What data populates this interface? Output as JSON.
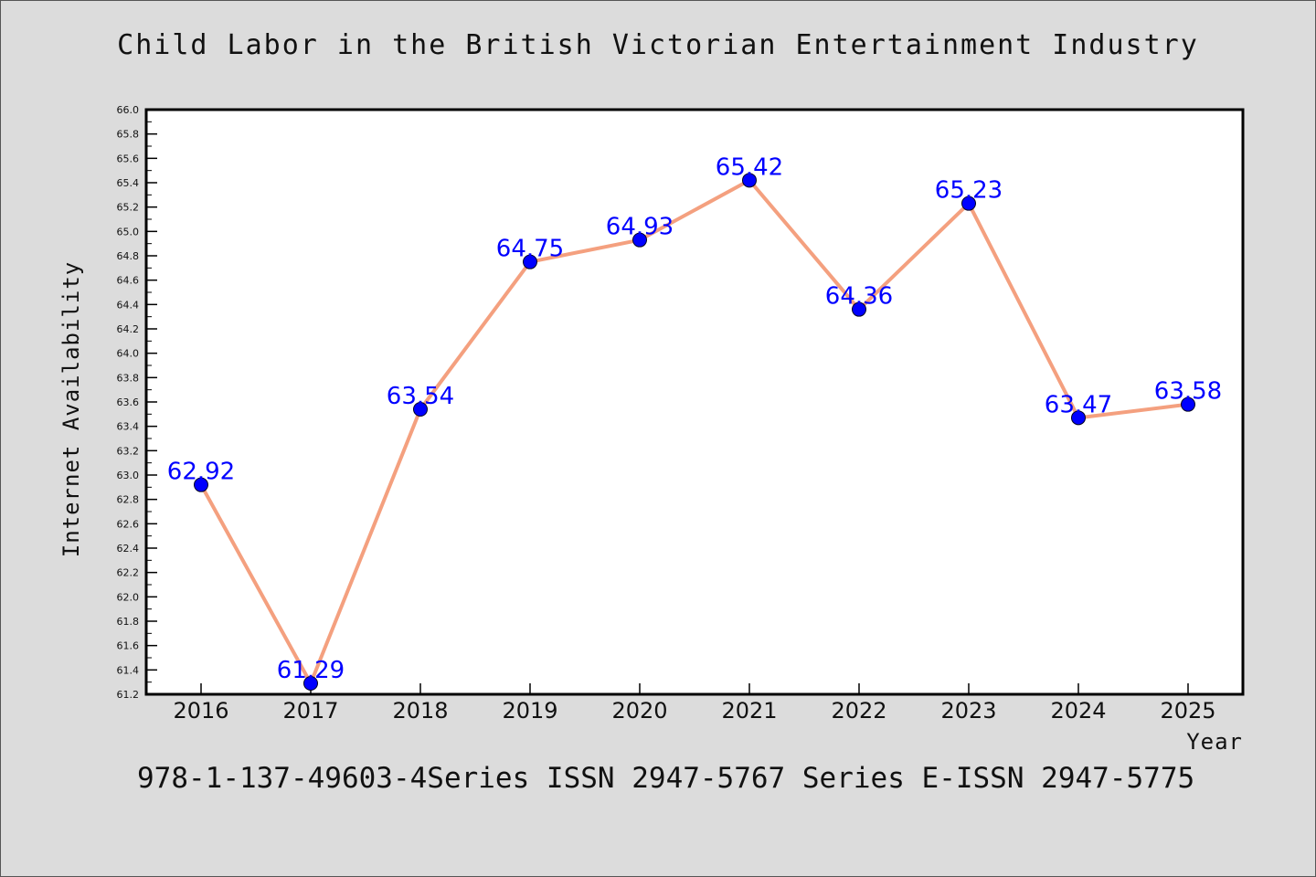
{
  "chart_data": {
    "type": "line",
    "title": "Child Labor in the British Victorian Entertainment Industry",
    "xlabel": "Year",
    "ylabel": "Internet Availability",
    "categories": [
      "2016",
      "2017",
      "2018",
      "2019",
      "2020",
      "2021",
      "2022",
      "2023",
      "2024",
      "2025"
    ],
    "series": [
      {
        "values": [
          62.92,
          61.29,
          63.54,
          64.75,
          64.93,
          65.42,
          64.36,
          65.23,
          63.47,
          63.58
        ],
        "line_color": "#f4a07f",
        "marker_color": "#0000ff"
      }
    ],
    "data_labels": [
      "62.92",
      "61.29",
      "63.54",
      "64.75",
      "64.93",
      "65.42",
      "64.36",
      "65.23",
      "63.47",
      "63.58"
    ],
    "ylim": [
      61.2,
      66.0
    ],
    "yticks": [
      "61.2",
      "61.4",
      "61.6",
      "61.8",
      "62.0",
      "62.2",
      "62.4",
      "62.6",
      "62.8",
      "63.0",
      "63.2",
      "63.4",
      "63.6",
      "63.8",
      "64.0",
      "64.2",
      "64.4",
      "64.6",
      "64.8",
      "65.0",
      "65.2",
      "65.4",
      "65.6",
      "65.8",
      "66.0"
    ],
    "grid": false,
    "legend": "none"
  },
  "footer": "978-1-137-49603-4Series ISSN 2947-5767 Series E-ISSN 2947-5775",
  "colors": {
    "background": "#dcdcdc",
    "plot_background": "#ffffff"
  }
}
